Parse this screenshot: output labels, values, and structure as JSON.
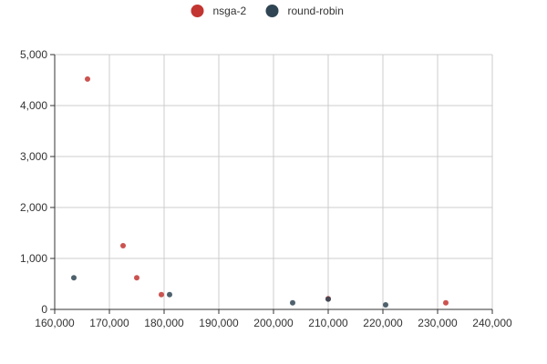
{
  "chart_data": {
    "type": "scatter",
    "xlim": [
      160000,
      240000
    ],
    "ylim": [
      0,
      5000
    ],
    "x_ticks": [
      "160,000",
      "170,000",
      "180,000",
      "190,000",
      "200,000",
      "210,000",
      "220,000",
      "230,000",
      "240,000"
    ],
    "y_ticks": [
      "0",
      "1,000",
      "2,000",
      "3,000",
      "4,000",
      "5,000"
    ],
    "grid": true,
    "legend_position": "top-center",
    "series": [
      {
        "name": "nsga-2",
        "color": "#c23531",
        "points": [
          {
            "x": 166000,
            "y": 4520
          },
          {
            "x": 172500,
            "y": 1250
          },
          {
            "x": 175000,
            "y": 620
          },
          {
            "x": 179500,
            "y": 290
          },
          {
            "x": 210000,
            "y": 210
          },
          {
            "x": 231500,
            "y": 130
          }
        ]
      },
      {
        "name": "round-robin",
        "color": "#2f4554",
        "points": [
          {
            "x": 163500,
            "y": 620
          },
          {
            "x": 181000,
            "y": 290
          },
          {
            "x": 203500,
            "y": 130
          },
          {
            "x": 210000,
            "y": 200
          },
          {
            "x": 220500,
            "y": 90
          }
        ]
      }
    ]
  }
}
